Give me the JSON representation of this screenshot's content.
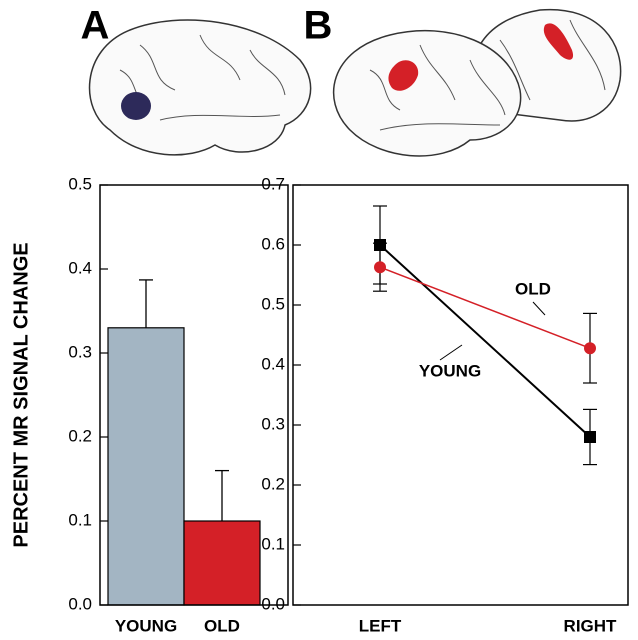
{
  "chart_data": [
    {
      "type": "bar",
      "panel_label": "A",
      "ylabel": "PERCENT MR SIGNAL CHANGE",
      "categories": [
        "YOUNG",
        "OLD"
      ],
      "values": [
        0.33,
        0.1
      ],
      "errors": [
        0.057,
        0.06
      ],
      "colors": [
        "#a3b5c3",
        "#d42027"
      ],
      "ylim": [
        0,
        0.5
      ],
      "yticks": [
        {
          "value": 0,
          "label": "0.0"
        },
        0.1,
        0.2,
        0.3,
        0.4,
        0.5
      ]
    },
    {
      "type": "line",
      "panel_label": "B",
      "categories": [
        "LEFT",
        "RIGHT"
      ],
      "series": [
        {
          "name": "YOUNG",
          "color": "#000000",
          "marker": "square",
          "values": [
            0.6,
            0.28
          ],
          "errors": [
            0.065,
            0.046
          ]
        },
        {
          "name": "OLD",
          "color": "#d42027",
          "marker": "circle",
          "values": [
            0.563,
            0.428
          ],
          "errors": [
            0.04,
            0.058
          ]
        }
      ],
      "ylim": [
        0,
        0.7
      ],
      "yticks": [
        {
          "value": 0,
          "label": "0.0"
        },
        0.1,
        0.2,
        0.3,
        0.4,
        0.5,
        0.6,
        0.7
      ]
    }
  ]
}
